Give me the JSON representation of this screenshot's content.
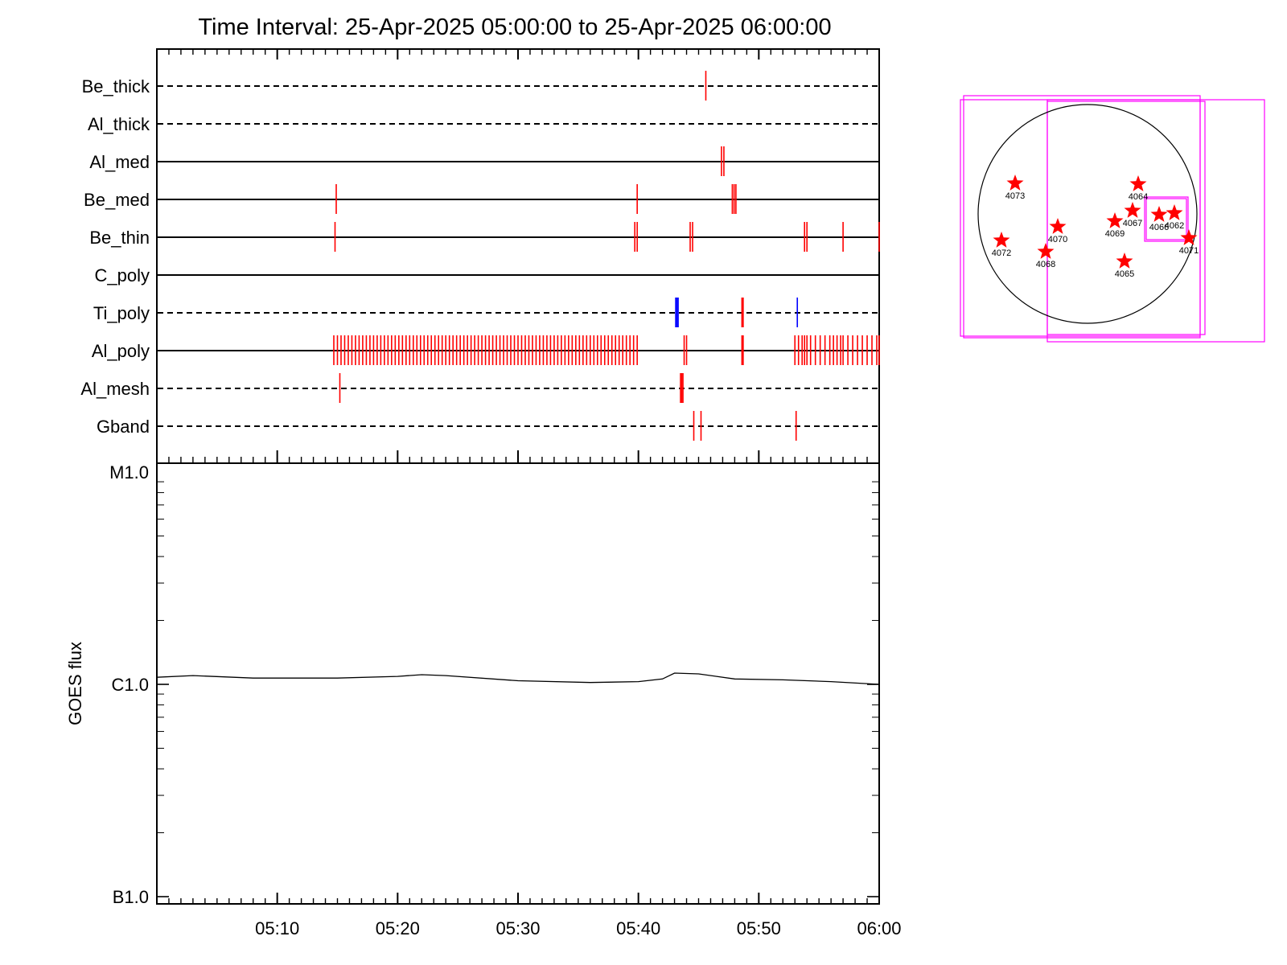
{
  "chart_data": [
    {
      "type": "timeline",
      "title": "Time Interval: 25-Apr-2025 05:00:00 to 25-Apr-2025 06:00:00",
      "x_range": [
        "05:00",
        "06:00"
      ],
      "x_ticks": [
        "05:10",
        "05:20",
        "05:30",
        "05:40",
        "05:50",
        "06:00"
      ],
      "colors": {
        "event": "#ff0000",
        "alt_event": "#0000ff",
        "axis": "#000000"
      },
      "filters": [
        {
          "name": "Be_thick",
          "line": "dashed",
          "events": [
            45.6
          ]
        },
        {
          "name": "Al_thick",
          "line": "dashed",
          "events": []
        },
        {
          "name": "Al_med",
          "line": "solid",
          "events": [
            46.9,
            47.1
          ]
        },
        {
          "name": "Be_med",
          "line": "solid",
          "events": [
            14.9,
            39.9,
            47.8,
            47.95,
            48.1
          ]
        },
        {
          "name": "Be_thin",
          "line": "solid",
          "events": [
            14.8,
            39.7,
            39.9,
            44.3,
            44.5,
            53.8,
            54.0,
            57.0,
            60.0
          ]
        },
        {
          "name": "C_poly",
          "line": "solid",
          "events": []
        },
        {
          "name": "Ti_poly",
          "line": "dashed",
          "events": [
            48.6,
            48.7
          ],
          "alt_events": [
            43.1,
            43.2,
            43.3,
            53.2
          ]
        },
        {
          "name": "Al_poly",
          "line": "solid",
          "events": [
            14.7,
            15.0,
            15.3,
            15.6,
            15.9,
            16.2,
            16.5,
            16.8,
            17.1,
            17.4,
            17.7,
            18.0,
            18.3,
            18.6,
            18.9,
            19.2,
            19.5,
            19.8,
            20.1,
            20.4,
            20.7,
            21.0,
            21.3,
            21.6,
            21.9,
            22.2,
            22.5,
            22.8,
            23.1,
            23.4,
            23.7,
            24.0,
            24.3,
            24.6,
            24.9,
            25.2,
            25.5,
            25.8,
            26.1,
            26.4,
            26.7,
            27.0,
            27.3,
            27.6,
            27.9,
            28.2,
            28.5,
            28.8,
            29.1,
            29.4,
            29.7,
            30.0,
            30.3,
            30.6,
            30.9,
            31.2,
            31.5,
            31.8,
            32.1,
            32.4,
            32.7,
            33.0,
            33.3,
            33.6,
            33.9,
            34.2,
            34.5,
            34.8,
            35.1,
            35.4,
            35.7,
            36.0,
            36.3,
            36.6,
            36.9,
            37.2,
            37.5,
            37.8,
            38.1,
            38.4,
            38.7,
            39.0,
            39.3,
            39.6,
            39.9,
            43.8,
            44.0,
            48.6,
            48.7,
            53.0,
            53.3,
            53.6,
            53.8,
            54.0,
            54.3,
            54.7,
            55.1,
            55.5,
            55.9,
            56.2,
            56.5,
            56.8,
            57.0,
            57.4,
            57.8,
            58.2,
            58.6,
            59.0,
            59.4,
            59.8,
            60.0
          ]
        },
        {
          "name": "Al_mesh",
          "line": "dashed",
          "events": [
            15.2,
            43.5,
            43.6,
            43.7
          ]
        },
        {
          "name": "Gband",
          "line": "dashed",
          "events": [
            44.6,
            45.2,
            53.1
          ]
        }
      ]
    },
    {
      "type": "line",
      "ylabel": "GOES flux",
      "y_scale": "log",
      "y_ticks": [
        "M1.0",
        "C1.0",
        "B1.0"
      ],
      "ylim": [
        1e-07,
        1e-05
      ],
      "x_range_minutes": [
        0,
        60
      ],
      "series": [
        {
          "color": "#000000",
          "x": [
            0,
            3,
            8,
            15,
            20,
            22,
            24,
            30,
            36,
            40,
            42,
            43,
            45,
            48,
            52,
            56,
            60
          ],
          "y": [
            1.08e-06,
            1.1e-06,
            1.07e-06,
            1.07e-06,
            1.09e-06,
            1.11e-06,
            1.1e-06,
            1.04e-06,
            1.02e-06,
            1.03e-06,
            1.06e-06,
            1.13e-06,
            1.12e-06,
            1.06e-06,
            1.05e-06,
            1.03e-06,
            1e-06
          ]
        }
      ]
    },
    {
      "type": "map",
      "colors": {
        "disk": "#000000",
        "fov": "#ff00ff",
        "marker": "#ff0000"
      },
      "active_regions": [
        "4073",
        "4064",
        "4067",
        "4069",
        "4066",
        "4062",
        "4070",
        "4072",
        "4068",
        "4071",
        "4065"
      ]
    }
  ]
}
